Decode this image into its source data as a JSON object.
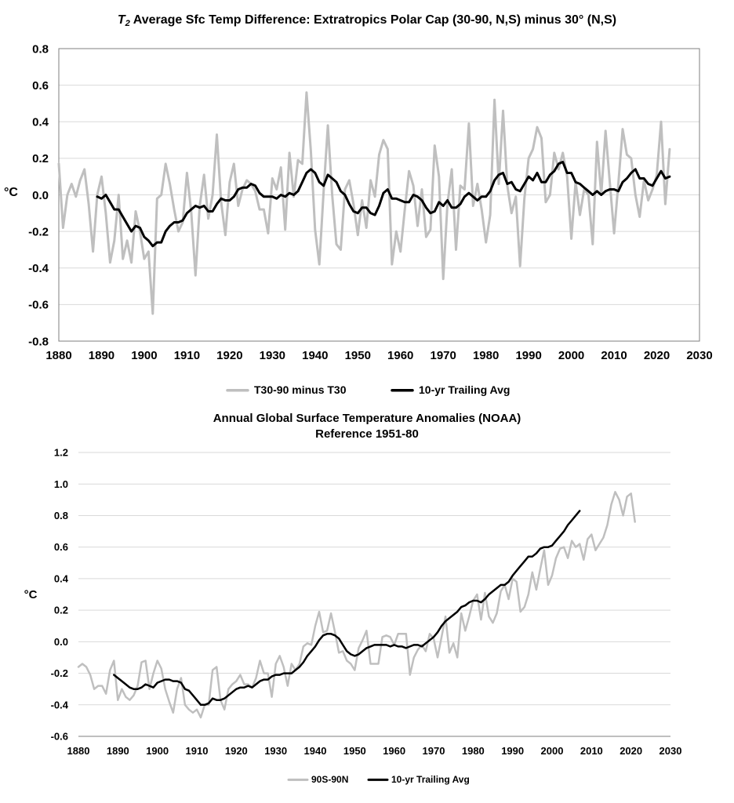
{
  "chart_data": [
    {
      "type": "line",
      "title_prefix": "T",
      "title_sub": "2",
      "title": "Average Sfc Temp Difference: Extratropics Polar Cap (30-90, N,S) minus 30° (N,S)",
      "xlabel": "",
      "ylabel": "°C",
      "xlim": [
        1880,
        2030
      ],
      "ylim": [
        -0.8,
        0.8
      ],
      "xticks": [
        "1880",
        "1890",
        "1900",
        "1910",
        "1920",
        "1930",
        "1940",
        "1950",
        "1960",
        "1970",
        "1980",
        "1990",
        "2000",
        "2010",
        "2020",
        "2030"
      ],
      "yticks": [
        "0.8",
        "0.6",
        "0.4",
        "0.2",
        "0.0",
        "-0.2",
        "-0.4",
        "-0.6",
        "-0.8"
      ],
      "grid": true,
      "legend_position": "bottom",
      "series": [
        {
          "name": "T30-90 minus T30",
          "color": "#bfbfbf",
          "x_start": 1880,
          "values": [
            0.17,
            -0.18,
            0.0,
            0.06,
            -0.01,
            0.08,
            0.14,
            -0.05,
            -0.31,
            0.0,
            0.1,
            -0.1,
            -0.37,
            -0.25,
            0.0,
            -0.35,
            -0.25,
            -0.37,
            -0.09,
            -0.2,
            -0.35,
            -0.31,
            -0.65,
            -0.02,
            0.0,
            0.17,
            0.06,
            -0.08,
            -0.2,
            -0.15,
            0.12,
            -0.09,
            -0.44,
            -0.06,
            0.11,
            -0.13,
            0.0,
            0.33,
            -0.04,
            -0.22,
            0.07,
            0.17,
            -0.06,
            0.03,
            0.08,
            0.06,
            0.02,
            -0.08,
            -0.08,
            -0.21,
            0.09,
            0.03,
            0.15,
            -0.19,
            0.23,
            -0.01,
            0.19,
            0.17,
            0.56,
            0.24,
            -0.19,
            -0.38,
            0.02,
            0.38,
            0.0,
            -0.27,
            -0.3,
            0.03,
            0.08,
            -0.05,
            -0.22,
            -0.03,
            -0.18,
            0.08,
            -0.01,
            0.22,
            0.3,
            0.25,
            -0.38,
            -0.2,
            -0.31,
            -0.08,
            0.13,
            0.05,
            -0.17,
            0.03,
            -0.23,
            -0.19,
            0.27,
            0.1,
            -0.46,
            -0.05,
            0.14,
            -0.3,
            0.05,
            0.03,
            0.39,
            -0.06,
            0.06,
            -0.08,
            -0.26,
            -0.11,
            0.52,
            0.06,
            0.46,
            0.05,
            -0.1,
            -0.01,
            -0.39,
            -0.02,
            0.2,
            0.25,
            0.37,
            0.31,
            -0.04,
            0.0,
            0.23,
            0.14,
            0.23,
            0.1,
            -0.24,
            0.07,
            -0.11,
            0.03,
            0.0,
            -0.27,
            0.29,
            0.0,
            0.35,
            0.07,
            -0.21,
            0.06,
            0.36,
            0.22,
            0.2,
            0.0,
            -0.12,
            0.08,
            -0.03,
            0.03,
            0.11,
            0.4,
            -0.05,
            0.25
          ]
        },
        {
          "name": "10-yr Trailing Avg",
          "color": "#000000",
          "x_start": 1889,
          "values": [
            -0.01,
            -0.02,
            0.0,
            -0.04,
            -0.08,
            -0.08,
            -0.12,
            -0.16,
            -0.2,
            -0.17,
            -0.18,
            -0.23,
            -0.25,
            -0.28,
            -0.26,
            -0.26,
            -0.2,
            -0.17,
            -0.15,
            -0.15,
            -0.14,
            -0.1,
            -0.08,
            -0.06,
            -0.07,
            -0.06,
            -0.09,
            -0.09,
            -0.05,
            -0.02,
            -0.03,
            -0.03,
            -0.01,
            0.03,
            0.04,
            0.04,
            0.06,
            0.05,
            0.01,
            -0.01,
            -0.01,
            -0.01,
            -0.02,
            0.0,
            -0.01,
            0.01,
            0.0,
            0.02,
            0.07,
            0.12,
            0.14,
            0.12,
            0.07,
            0.05,
            0.11,
            0.09,
            0.07,
            0.02,
            0.0,
            -0.05,
            -0.09,
            -0.1,
            -0.07,
            -0.07,
            -0.1,
            -0.11,
            -0.06,
            0.01,
            0.03,
            -0.02,
            -0.02,
            -0.03,
            -0.04,
            -0.04,
            0.0,
            -0.01,
            -0.03,
            -0.07,
            -0.1,
            -0.09,
            -0.04,
            -0.06,
            -0.03,
            -0.07,
            -0.07,
            -0.05,
            -0.01,
            0.01,
            -0.01,
            -0.03,
            -0.01,
            -0.01,
            0.02,
            0.08,
            0.11,
            0.12,
            0.06,
            0.07,
            0.03,
            0.02,
            0.06,
            0.1,
            0.08,
            0.12,
            0.07,
            0.07,
            0.11,
            0.13,
            0.17,
            0.18,
            0.12,
            0.12,
            0.07,
            0.06,
            0.04,
            0.02,
            0.0,
            0.02,
            0.0,
            0.02,
            0.03,
            0.03,
            0.02,
            0.07,
            0.09,
            0.12,
            0.14,
            0.09,
            0.09,
            0.06,
            0.05,
            0.09,
            0.13,
            0.09,
            0.1
          ]
        }
      ]
    },
    {
      "type": "line",
      "title": "Annual Global Surface Temperature Anomalies (NOAA)",
      "subtitle": "Reference 1951-80",
      "xlabel": "",
      "ylabel": "°C",
      "xlim": [
        1880,
        2030
      ],
      "ylim": [
        -0.6,
        1.2
      ],
      "xticks": [
        "1880",
        "1890",
        "1900",
        "1910",
        "1920",
        "1930",
        "1940",
        "1950",
        "1960",
        "1970",
        "1980",
        "1990",
        "2000",
        "2010",
        "2020",
        "2030"
      ],
      "yticks": [
        "1.2",
        "1.0",
        "0.8",
        "0.6",
        "0.4",
        "0.2",
        "0.0",
        "-0.2",
        "-0.4",
        "-0.6"
      ],
      "grid": true,
      "legend_position": "bottom",
      "series": [
        {
          "name": "90S-90N",
          "color": "#bfbfbf",
          "x_start": 1880,
          "values": [
            -0.16,
            -0.14,
            -0.16,
            -0.21,
            -0.3,
            -0.28,
            -0.28,
            -0.33,
            -0.18,
            -0.12,
            -0.37,
            -0.3,
            -0.35,
            -0.37,
            -0.34,
            -0.28,
            -0.13,
            -0.12,
            -0.3,
            -0.2,
            -0.12,
            -0.17,
            -0.3,
            -0.38,
            -0.45,
            -0.3,
            -0.23,
            -0.4,
            -0.43,
            -0.45,
            -0.43,
            -0.48,
            -0.4,
            -0.4,
            -0.18,
            -0.16,
            -0.37,
            -0.43,
            -0.3,
            -0.27,
            -0.25,
            -0.21,
            -0.27,
            -0.27,
            -0.29,
            -0.23,
            -0.12,
            -0.2,
            -0.2,
            -0.35,
            -0.14,
            -0.09,
            -0.16,
            -0.28,
            -0.14,
            -0.18,
            -0.14,
            -0.03,
            -0.01,
            -0.02,
            0.1,
            0.19,
            0.06,
            0.07,
            0.18,
            0.06,
            -0.07,
            -0.06,
            -0.12,
            -0.14,
            -0.18,
            -0.04,
            0.01,
            0.07,
            -0.14,
            -0.14,
            -0.14,
            0.03,
            0.04,
            0.03,
            -0.02,
            0.05,
            0.05,
            0.05,
            -0.21,
            -0.1,
            -0.05,
            -0.02,
            -0.06,
            0.05,
            0.02,
            -0.1,
            0.03,
            0.16,
            -0.07,
            -0.01,
            -0.1,
            0.18,
            0.07,
            0.16,
            0.26,
            0.3,
            0.14,
            0.31,
            0.16,
            0.12,
            0.18,
            0.32,
            0.36,
            0.27,
            0.4,
            0.38,
            0.19,
            0.22,
            0.3,
            0.44,
            0.33,
            0.46,
            0.58,
            0.36,
            0.42,
            0.53,
            0.59,
            0.6,
            0.53,
            0.64,
            0.6,
            0.62,
            0.52,
            0.65,
            0.68,
            0.58,
            0.62,
            0.66,
            0.74,
            0.87,
            0.95,
            0.9,
            0.8,
            0.92,
            0.94,
            0.76
          ]
        },
        {
          "name": "10-yr Trailing Avg",
          "color": "#000000",
          "x_start": 1889,
          "values": [
            -0.21,
            -0.23,
            -0.25,
            -0.27,
            -0.29,
            -0.3,
            -0.3,
            -0.29,
            -0.27,
            -0.28,
            -0.29,
            -0.26,
            -0.25,
            -0.24,
            -0.24,
            -0.25,
            -0.25,
            -0.26,
            -0.3,
            -0.31,
            -0.34,
            -0.37,
            -0.4,
            -0.4,
            -0.39,
            -0.36,
            -0.37,
            -0.37,
            -0.36,
            -0.34,
            -0.32,
            -0.3,
            -0.29,
            -0.29,
            -0.28,
            -0.29,
            -0.27,
            -0.25,
            -0.24,
            -0.24,
            -0.22,
            -0.21,
            -0.21,
            -0.2,
            -0.2,
            -0.2,
            -0.18,
            -0.16,
            -0.13,
            -0.09,
            -0.06,
            -0.03,
            0.01,
            0.04,
            0.05,
            0.05,
            0.04,
            0.02,
            -0.02,
            -0.06,
            -0.08,
            -0.09,
            -0.08,
            -0.06,
            -0.04,
            -0.03,
            -0.02,
            -0.02,
            -0.02,
            -0.02,
            -0.03,
            -0.02,
            -0.03,
            -0.03,
            -0.04,
            -0.03,
            -0.02,
            -0.02,
            -0.03,
            -0.01,
            0.01,
            0.03,
            0.06,
            0.1,
            0.13,
            0.15,
            0.17,
            0.19,
            0.22,
            0.23,
            0.25,
            0.26,
            0.26,
            0.25,
            0.27,
            0.3,
            0.32,
            0.34,
            0.36,
            0.36,
            0.38,
            0.42,
            0.45,
            0.48,
            0.51,
            0.54,
            0.54,
            0.56,
            0.59,
            0.6,
            0.6,
            0.61,
            0.64,
            0.67,
            0.7,
            0.74,
            0.77,
            0.8,
            0.83
          ]
        }
      ]
    }
  ]
}
